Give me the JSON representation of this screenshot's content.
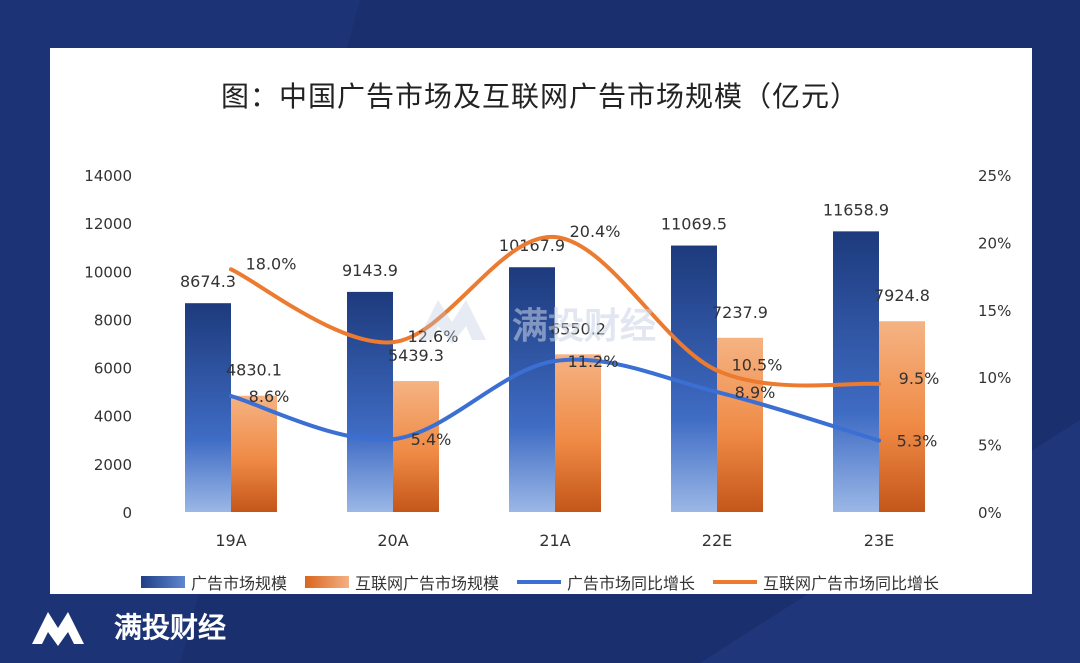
{
  "chart_data": {
    "type": "bar",
    "title": "图：中国广告市场及互联网广告市场规模（亿元）",
    "categories": [
      "19A",
      "20A",
      "21A",
      "22E",
      "23E"
    ],
    "series": [
      {
        "name": "广告市场规模",
        "kind": "bar",
        "axis": "left",
        "values": [
          8674.3,
          9143.9,
          10167.9,
          11069.5,
          11658.9
        ],
        "labels": [
          "8674.3",
          "9143.9",
          "10167.9",
          "11069.5",
          "11658.9"
        ],
        "color": "#2b4f9a"
      },
      {
        "name": "互联网广告市场规模",
        "kind": "bar",
        "axis": "left",
        "values": [
          4830.1,
          5439.3,
          6550.2,
          7237.9,
          7924.8
        ],
        "labels": [
          "4830.1",
          "5439.3",
          "6550.2",
          "7237.9",
          "7924.8"
        ],
        "color": "#ed8a44"
      },
      {
        "name": "广告市场同比增长",
        "kind": "line",
        "axis": "right",
        "values": [
          8.6,
          5.4,
          11.2,
          8.9,
          5.3
        ],
        "labels": [
          "8.6%",
          "5.4%",
          "11.2%",
          "8.9%",
          "5.3%"
        ],
        "color": "#3b6fd4"
      },
      {
        "name": "互联网广告市场同比增长",
        "kind": "line",
        "axis": "right",
        "values": [
          18.0,
          12.6,
          20.4,
          10.5,
          9.5
        ],
        "labels": [
          "18.0%",
          "12.6%",
          "20.4%",
          "10.5%",
          "9.5%"
        ],
        "color": "#ec7a2f"
      }
    ],
    "y_left": {
      "min": 0,
      "max": 14000,
      "ticks": [
        "0",
        "2000",
        "4000",
        "6000",
        "8000",
        "10000",
        "12000",
        "14000"
      ]
    },
    "y_right": {
      "min": 0,
      "max": 25,
      "ticks": [
        "0%",
        "5%",
        "10%",
        "15%",
        "20%",
        "25%"
      ]
    },
    "grid": false,
    "legend_position": "bottom"
  },
  "watermark": "满投财经",
  "brand": {
    "name": "满投财经"
  }
}
